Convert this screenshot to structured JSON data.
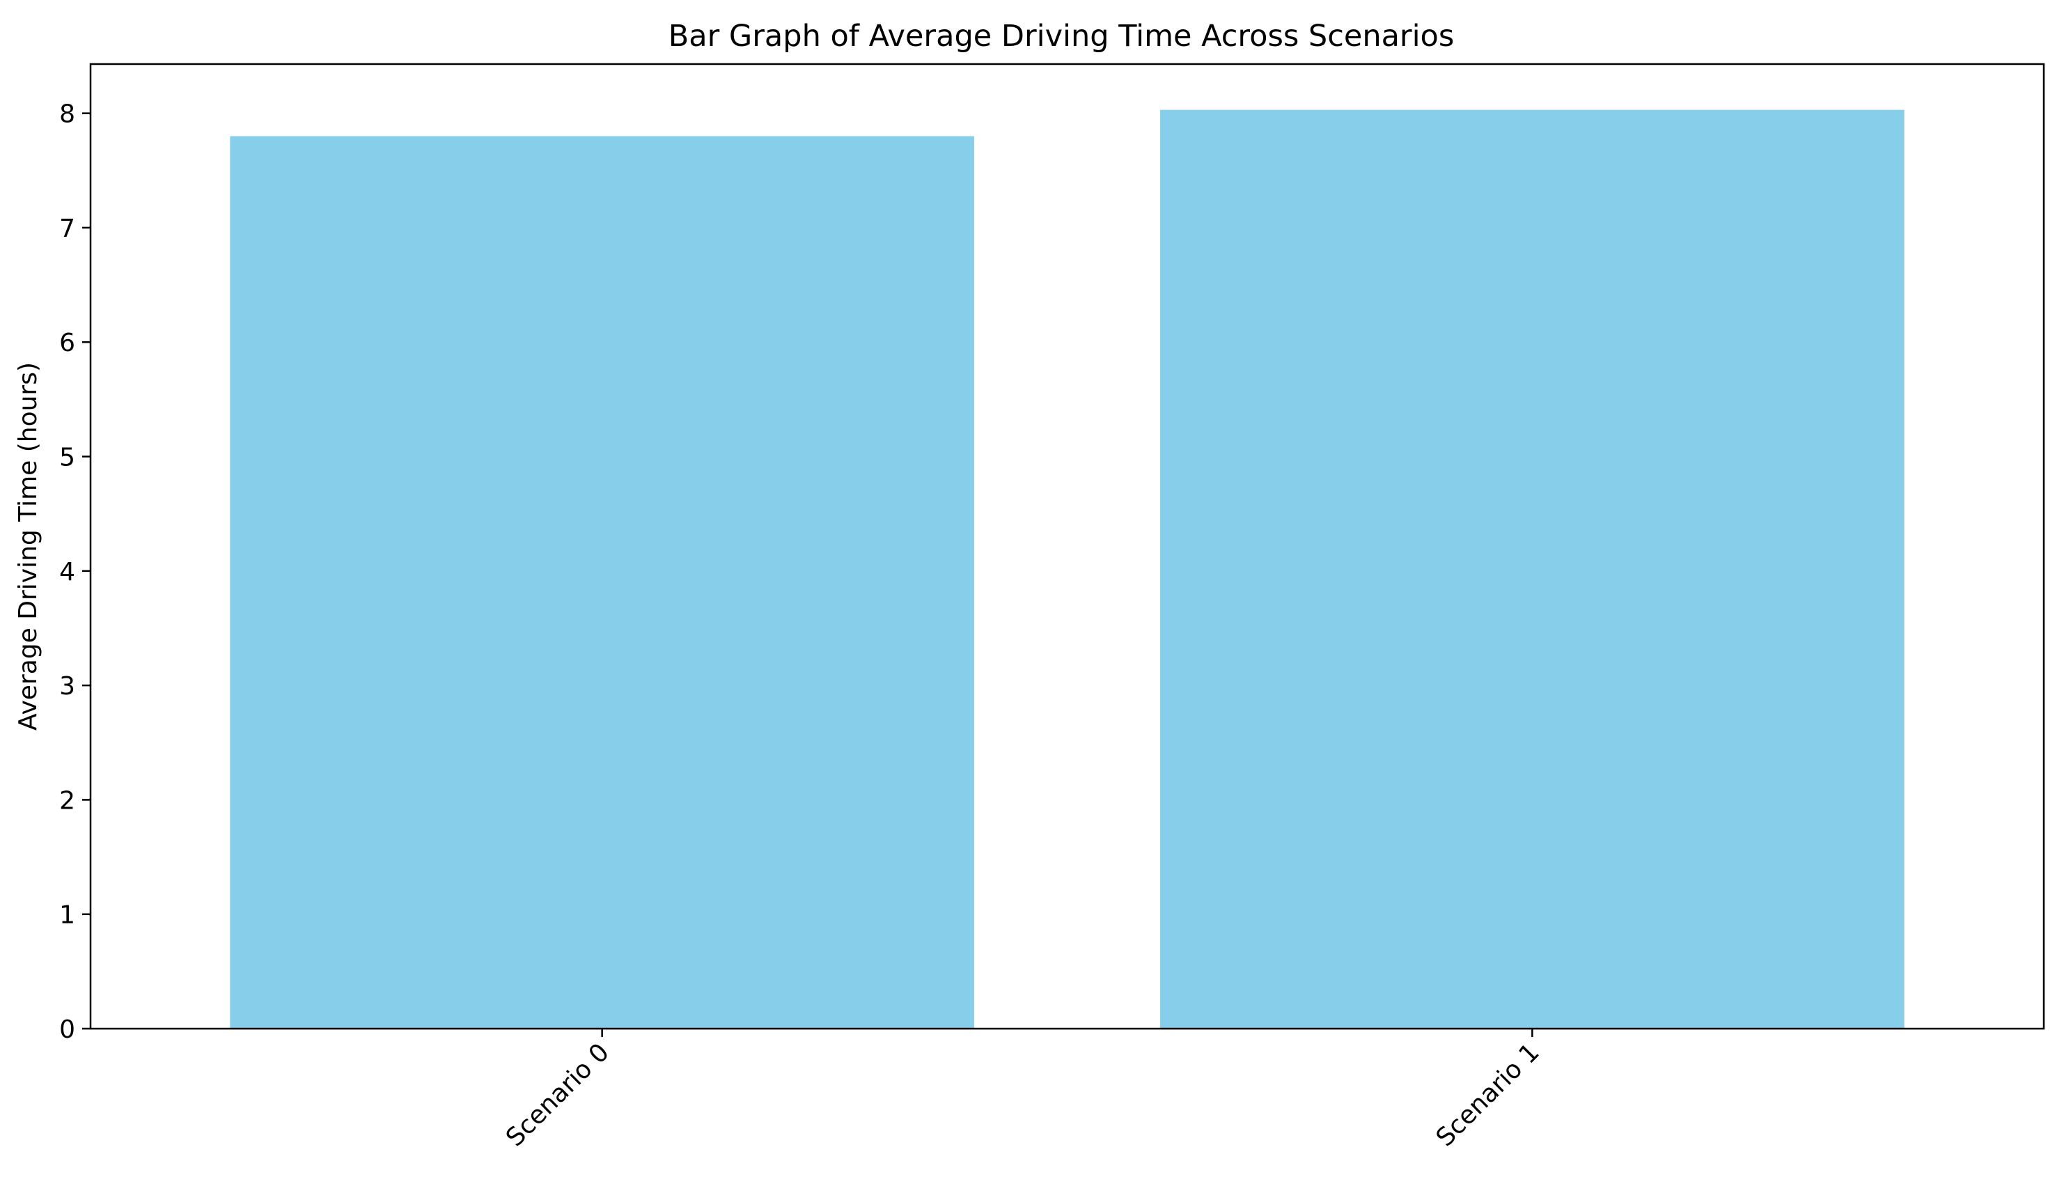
{
  "chart_data": {
    "type": "bar",
    "title": "Bar Graph of Average Driving Time Across Scenarios",
    "xlabel": "",
    "ylabel": "Average Driving Time (hours)",
    "categories": [
      "Scenario 0",
      "Scenario 1"
    ],
    "values": [
      7.8,
      8.03
    ],
    "ylim": [
      0,
      8.43
    ],
    "yticks": [
      0,
      1,
      2,
      3,
      4,
      5,
      6,
      7,
      8
    ],
    "ytick_labels": [
      "0",
      "1",
      "2",
      "3",
      "4",
      "5",
      "6",
      "7",
      "8"
    ],
    "xtick_rotation_deg": 45,
    "grid": false,
    "legend": "none",
    "bar_color": "#87CEEB",
    "axis_color": "#000000"
  }
}
